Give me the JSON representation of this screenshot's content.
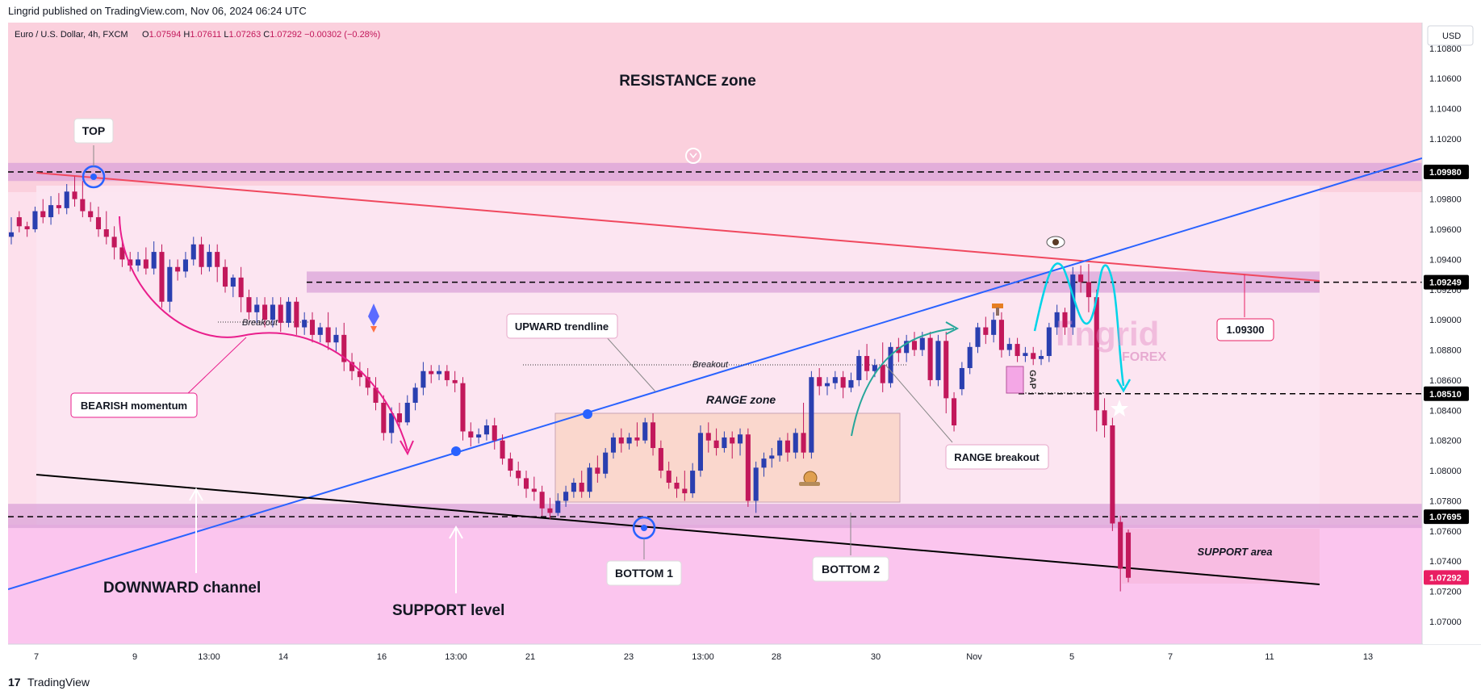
{
  "header": {
    "publisher_line": "Lingrid published on TradingView.com, Nov 06, 2024 06:24 UTC",
    "symbol_line": "Euro / U.S. Dollar, 4h, FXCM",
    "ohlc": [
      {
        "label": "O",
        "value": "1.07594"
      },
      {
        "label": "H",
        "value": "1.07611"
      },
      {
        "label": "L",
        "value": "1.07263"
      },
      {
        "label": "C",
        "value": "1.07292"
      },
      {
        "label": "",
        "value": "−0.00302 (−0.28%)"
      }
    ],
    "currency": "USD"
  },
  "footer": {
    "brand_mark": "17",
    "brand_name": "TradingView"
  },
  "watermark": {
    "main": "lingrid",
    "sub": "FOREX"
  },
  "colors": {
    "bull": "#2a3fb0",
    "bear": "#c2185b",
    "resistance_line": "#f0485e",
    "trendline": "#2962ff",
    "channel_line": "#000000",
    "zone": "#dba3d8",
    "last_price": "#e91e63",
    "momentum_arrow": "#e91e8c",
    "projection": "#00bcd4",
    "breakout_arrow": "#26a69a"
  },
  "chart_data": {
    "type": "candlestick",
    "symbol": "Euro / U.S. Dollar",
    "timeframe": "4h",
    "source": "FXCM",
    "ylim": [
      1.0685,
      1.1097
    ],
    "y_ticks": [
      "1.10800",
      "1.10600",
      "1.10400",
      "1.10200",
      "1.09800",
      "1.09600",
      "1.09400",
      "1.09200",
      "1.09000",
      "1.08800",
      "1.08600",
      "1.08400",
      "1.08200",
      "1.08000",
      "1.07800",
      "1.07600",
      "1.07400",
      "1.07200",
      "1.07000"
    ],
    "x_ticks": [
      "7",
      "9",
      "13:00",
      "14",
      "16",
      "13:00",
      "21",
      "23",
      "13:00",
      "28",
      "30",
      "Nov",
      "5",
      "7",
      "11",
      "13"
    ],
    "price_labels": [
      {
        "value": "1.09980",
        "role": "resistance"
      },
      {
        "value": "1.09249",
        "role": "level"
      },
      {
        "value": "1.08510",
        "role": "level"
      },
      {
        "value": "1.07695",
        "role": "support"
      },
      {
        "value": "1.07292",
        "role": "last"
      }
    ],
    "levels": [
      1.0998,
      1.09249,
      1.0851,
      1.07695
    ],
    "zones": [
      {
        "from": 1.0992,
        "to": 1.1004
      },
      {
        "from": 1.0918,
        "to": 1.0932
      },
      {
        "from": 1.0762,
        "to": 1.0778
      }
    ],
    "candles": [
      [
        1.0955,
        1.0968,
        1.0958,
        1.095
      ],
      [
        1.0968,
        1.0972,
        1.0962,
        1.0958
      ],
      [
        1.0962,
        1.0965,
        1.096,
        1.0955
      ],
      [
        1.096,
        1.0975,
        1.0972,
        1.0958
      ],
      [
        1.0972,
        1.098,
        1.0968,
        1.0964
      ],
      [
        1.0968,
        1.0982,
        1.0976,
        1.0963
      ],
      [
        1.0976,
        1.0984,
        1.0974,
        1.097
      ],
      [
        1.0974,
        1.099,
        1.0985,
        1.097
      ],
      [
        1.0985,
        1.0995,
        1.098,
        1.0975
      ],
      [
        1.098,
        1.0992,
        1.0972,
        1.0968
      ],
      [
        1.0972,
        1.0978,
        1.0968,
        1.0965
      ],
      [
        1.0968,
        1.0975,
        1.096,
        1.0955
      ],
      [
        1.096,
        1.0972,
        1.0955,
        1.095
      ],
      [
        1.0955,
        1.0962,
        1.0948,
        1.094
      ],
      [
        1.0948,
        1.0952,
        1.094,
        1.0935
      ],
      [
        1.094,
        1.0945,
        1.0936,
        1.0932
      ],
      [
        1.0936,
        1.0945,
        1.094,
        1.0932
      ],
      [
        1.094,
        1.0948,
        1.0934,
        1.093
      ],
      [
        1.0934,
        1.0952,
        1.0945,
        1.093
      ],
      [
        1.0945,
        1.095,
        1.0912,
        1.0908
      ],
      [
        1.0912,
        1.094,
        1.0935,
        1.0905
      ],
      [
        1.0935,
        1.094,
        1.0932,
        1.0926
      ],
      [
        1.0932,
        1.0945,
        1.094,
        1.0928
      ],
      [
        1.094,
        1.0955,
        1.095,
        1.0936
      ],
      [
        1.095,
        1.0955,
        1.0935,
        1.093
      ],
      [
        1.0935,
        1.095,
        1.0945,
        1.0932
      ],
      [
        1.0945,
        1.095,
        1.0935,
        1.0925
      ],
      [
        1.0935,
        1.094,
        1.0922,
        1.0918
      ],
      [
        1.0922,
        1.093,
        1.0928,
        1.0915
      ],
      [
        1.0928,
        1.0935,
        1.0915,
        1.0905
      ],
      [
        1.0915,
        1.092,
        1.0905,
        1.09
      ],
      [
        1.0905,
        1.0915,
        1.091,
        1.0898
      ],
      [
        1.091,
        1.0915,
        1.09,
        1.0895
      ],
      [
        1.09,
        1.0915,
        1.091,
        1.0895
      ],
      [
        1.091,
        1.0915,
        1.0898,
        1.0892
      ],
      [
        1.0898,
        1.0915,
        1.0912,
        1.0895
      ],
      [
        1.0912,
        1.0915,
        1.0895,
        1.089
      ],
      [
        1.0895,
        1.0905,
        1.09,
        1.089
      ],
      [
        1.09,
        1.0905,
        1.089,
        1.0885
      ],
      [
        1.089,
        1.0898,
        1.0895,
        1.0885
      ],
      [
        1.0895,
        1.0905,
        1.0885,
        1.088
      ],
      [
        1.0885,
        1.0895,
        1.089,
        1.0878
      ],
      [
        1.089,
        1.0898,
        1.0872,
        1.0866
      ],
      [
        1.0872,
        1.0878,
        1.0866,
        1.086
      ],
      [
        1.0866,
        1.0872,
        1.0862,
        1.0856
      ],
      [
        1.0862,
        1.0868,
        1.0855,
        1.085
      ],
      [
        1.0855,
        1.0862,
        1.0845,
        1.084
      ],
      [
        1.0845,
        1.085,
        1.0825,
        1.082
      ],
      [
        1.0825,
        1.0842,
        1.0838,
        1.0818
      ],
      [
        1.0838,
        1.0845,
        1.0832,
        1.0828
      ],
      [
        1.0832,
        1.085,
        1.0845,
        1.083
      ],
      [
        1.0845,
        1.0858,
        1.0855,
        1.084
      ],
      [
        1.0855,
        1.0872,
        1.0866,
        1.085
      ],
      [
        1.0866,
        1.087,
        1.0864,
        1.0858
      ],
      [
        1.0864,
        1.087,
        1.0866,
        1.086
      ],
      [
        1.0866,
        1.087,
        1.086,
        1.0856
      ],
      [
        1.086,
        1.0866,
        1.0858,
        1.0852
      ],
      [
        1.0858,
        1.0862,
        1.0826,
        1.082
      ],
      [
        1.0826,
        1.0832,
        1.0822,
        1.0816
      ],
      [
        1.0822,
        1.0828,
        1.0824,
        1.0818
      ],
      [
        1.0824,
        1.0834,
        1.083,
        1.082
      ],
      [
        1.083,
        1.0835,
        1.082,
        1.0814
      ],
      [
        1.082,
        1.0824,
        1.0808,
        1.0804
      ],
      [
        1.0808,
        1.0812,
        1.08,
        1.0796
      ],
      [
        1.08,
        1.0806,
        1.0795,
        1.079
      ],
      [
        1.0795,
        1.08,
        1.0788,
        1.0782
      ],
      [
        1.0788,
        1.0796,
        1.0786,
        1.078
      ],
      [
        1.0786,
        1.079,
        1.0775,
        1.077
      ],
      [
        1.0775,
        1.0782,
        1.0772,
        1.0768
      ],
      [
        1.0772,
        1.0785,
        1.078,
        1.077
      ],
      [
        1.078,
        1.079,
        1.0786,
        1.0776
      ],
      [
        1.0786,
        1.0795,
        1.0792,
        1.0782
      ],
      [
        1.0792,
        1.08,
        1.0786,
        1.0782
      ],
      [
        1.0786,
        1.0805,
        1.0802,
        1.0782
      ],
      [
        1.0802,
        1.081,
        1.0798,
        1.0792
      ],
      [
        1.0798,
        1.0815,
        1.0812,
        1.0795
      ],
      [
        1.0812,
        1.0825,
        1.0822,
        1.0808
      ],
      [
        1.0822,
        1.0828,
        1.0818,
        1.0812
      ],
      [
        1.0818,
        1.0825,
        1.0822,
        1.0814
      ],
      [
        1.0822,
        1.0832,
        1.082,
        1.0816
      ],
      [
        1.082,
        1.0835,
        1.0832,
        1.0818
      ],
      [
        1.0832,
        1.0838,
        1.0815,
        1.081
      ],
      [
        1.0815,
        1.082,
        1.08,
        1.0795
      ],
      [
        1.08,
        1.0806,
        1.0792,
        1.0788
      ],
      [
        1.0792,
        1.0796,
        1.0788,
        1.0782
      ],
      [
        1.0788,
        1.08,
        1.0785,
        1.078
      ],
      [
        1.0785,
        1.0805,
        1.08,
        1.0782
      ],
      [
        1.08,
        1.083,
        1.0825,
        1.0796
      ],
      [
        1.0825,
        1.0832,
        1.082,
        1.0812
      ],
      [
        1.082,
        1.0828,
        1.0815,
        1.081
      ],
      [
        1.0815,
        1.0826,
        1.0822,
        1.0812
      ],
      [
        1.0822,
        1.0826,
        1.0818,
        1.0808
      ],
      [
        1.0818,
        1.0828,
        1.0824,
        1.081
      ],
      [
        1.0824,
        1.0828,
        1.078,
        1.0776
      ],
      [
        1.078,
        1.0806,
        1.0802,
        1.0772
      ],
      [
        1.0802,
        1.0812,
        1.0808,
        1.0796
      ],
      [
        1.0808,
        1.0815,
        1.081,
        1.0802
      ],
      [
        1.081,
        1.0822,
        1.082,
        1.0806
      ],
      [
        1.082,
        1.0825,
        1.0812,
        1.0806
      ],
      [
        1.0812,
        1.0828,
        1.0825,
        1.0808
      ],
      [
        1.0825,
        1.0845,
        1.0812,
        1.0808
      ],
      [
        1.0812,
        1.0866,
        1.0862,
        1.0808
      ],
      [
        1.0862,
        1.0868,
        1.0856,
        1.085
      ],
      [
        1.0856,
        1.0862,
        1.0858,
        1.085
      ],
      [
        1.0858,
        1.0866,
        1.0862,
        1.0854
      ],
      [
        1.0862,
        1.0866,
        1.0855,
        1.0848
      ],
      [
        1.0855,
        1.0865,
        1.086,
        1.0852
      ],
      [
        1.086,
        1.088,
        1.0876,
        1.0856
      ],
      [
        1.0876,
        1.0884,
        1.0866,
        1.086
      ],
      [
        1.0866,
        1.0874,
        1.087,
        1.0862
      ],
      [
        1.087,
        1.0885,
        1.0858,
        1.0852
      ],
      [
        1.0858,
        1.0885,
        1.0882,
        1.0855
      ],
      [
        1.0882,
        1.0888,
        1.0878,
        1.0872
      ],
      [
        1.0878,
        1.089,
        1.0886,
        1.0872
      ],
      [
        1.0886,
        1.0892,
        1.088,
        1.0876
      ],
      [
        1.088,
        1.0892,
        1.0888,
        1.0876
      ],
      [
        1.0888,
        1.0892,
        1.086,
        1.0856
      ],
      [
        1.086,
        1.089,
        1.0886,
        1.0856
      ],
      [
        1.0886,
        1.0892,
        1.0848,
        1.0838
      ],
      [
        1.0848,
        1.0852,
        1.083,
        1.0826
      ],
      [
        1.0854,
        1.0872,
        1.0868,
        1.085
      ],
      [
        1.0868,
        1.0885,
        1.0882,
        1.0864
      ],
      [
        1.0882,
        1.0898,
        1.0895,
        1.0878
      ],
      [
        1.0895,
        1.0902,
        1.089,
        1.0884
      ],
      [
        1.089,
        1.0905,
        1.09,
        1.0885
      ],
      [
        1.09,
        1.0905,
        1.088,
        1.0875
      ],
      [
        1.088,
        1.0888,
        1.0884,
        1.0876
      ],
      [
        1.0884,
        1.0888,
        1.0876,
        1.0872
      ],
      [
        1.0876,
        1.0882,
        1.0878,
        1.0872
      ],
      [
        1.0878,
        1.0882,
        1.0874,
        1.087
      ],
      [
        1.0874,
        1.088,
        1.0876,
        1.087
      ],
      [
        1.0876,
        1.0898,
        1.0895,
        1.0872
      ],
      [
        1.0895,
        1.091,
        1.0905,
        1.089
      ],
      [
        1.0905,
        1.0908,
        1.0895,
        1.089
      ],
      [
        1.0895,
        1.0935,
        1.093,
        1.089
      ],
      [
        1.093,
        1.0936,
        1.0925,
        1.0918
      ],
      [
        1.0925,
        1.0937,
        1.0915,
        1.0905
      ],
      [
        1.0915,
        1.092,
        1.084,
        1.0826
      ],
      [
        1.084,
        1.0848,
        1.083,
        1.0822
      ],
      [
        1.083,
        1.0835,
        1.0765,
        1.076
      ],
      [
        1.0766,
        1.077,
        1.0735,
        1.072
      ],
      [
        1.0759,
        1.0761,
        1.0729,
        1.0726
      ]
    ]
  },
  "annotations": {
    "resistance_zone": "RESISTANCE zone",
    "top": "TOP",
    "bearish_momentum": "BEARISH momentum",
    "breakout_1": "Breakout",
    "breakout_2": "Breakout",
    "upward_trendline": "UPWARD trendline",
    "range_zone": "RANGE zone",
    "range_breakout": "RANGE breakout",
    "bottom_1": "BOTTOM 1",
    "bottom_2": "BOTTOM 2",
    "downward_channel": "DOWNWARD channel",
    "support_level": "SUPPORT level",
    "support_area": "SUPPORT area",
    "gap": "GAP",
    "target": "1.09300"
  }
}
